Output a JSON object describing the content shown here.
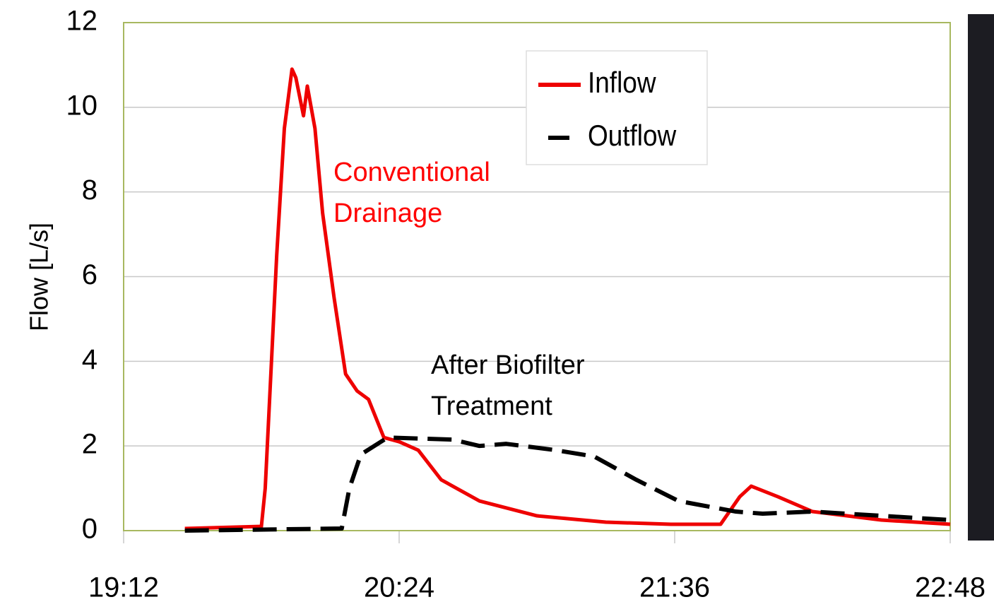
{
  "chart_data": {
    "type": "line",
    "y_label": "Flow [L/s]",
    "annotations": [
      {
        "lines": [
          "Conventional",
          "Drainage"
        ],
        "color": "#ff0000"
      },
      {
        "lines": [
          "After Biofilter",
          "Treatment"
        ],
        "color": "#000000"
      }
    ],
    "xlim": [
      "19:12",
      "22:48"
    ],
    "xticks": [
      "19:12",
      "20:24",
      "21:36",
      "22:48"
    ],
    "ylim": [
      0,
      12
    ],
    "yticks": [
      0,
      2,
      4,
      6,
      8,
      10,
      12
    ],
    "grid": true,
    "series": [
      {
        "name": "Inflow",
        "color": "#ee0000",
        "dashed": false,
        "x": [
          "19:28",
          "19:48",
          "19:49",
          "19:52",
          "19:54",
          "19:56",
          "19:57",
          "19:59",
          "20:00",
          "20:02",
          "20:04",
          "20:07",
          "20:10",
          "20:13",
          "20:16",
          "20:20",
          "20:24",
          "20:29",
          "20:35",
          "20:45",
          "21:00",
          "21:18",
          "21:35",
          "21:48",
          "21:53",
          "21:56",
          "22:03",
          "22:12",
          "22:30",
          "22:48"
        ],
        "values": [
          0.05,
          0.1,
          1.0,
          6.5,
          9.5,
          10.9,
          10.7,
          9.8,
          10.5,
          9.5,
          7.5,
          5.5,
          3.7,
          3.3,
          3.1,
          2.2,
          2.1,
          1.9,
          1.2,
          0.7,
          0.35,
          0.2,
          0.15,
          0.15,
          0.8,
          1.05,
          0.8,
          0.45,
          0.25,
          0.15
        ]
      },
      {
        "name": "Outflow",
        "color": "#000000",
        "dashed": true,
        "x": [
          "19:28",
          "20:09",
          "20:11",
          "20:14",
          "20:21",
          "20:38",
          "20:45",
          "20:52",
          "21:05",
          "21:15",
          "21:26",
          "21:37",
          "21:52",
          "21:59",
          "22:12",
          "22:30",
          "22:48"
        ],
        "values": [
          0.0,
          0.05,
          1.0,
          1.8,
          2.2,
          2.15,
          2.0,
          2.05,
          1.9,
          1.75,
          1.2,
          0.7,
          0.45,
          0.4,
          0.45,
          0.35,
          0.25
        ]
      }
    ]
  }
}
